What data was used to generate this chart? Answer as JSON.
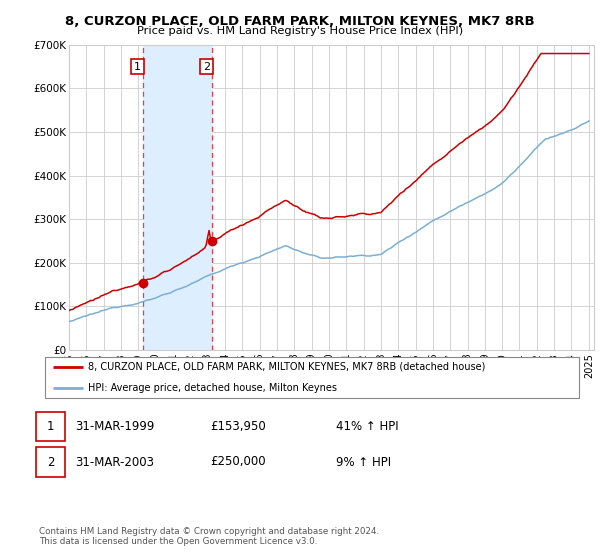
{
  "title_line1": "8, CURZON PLACE, OLD FARM PARK, MILTON KEYNES, MK7 8RB",
  "title_line2": "Price paid vs. HM Land Registry's House Price Index (HPI)",
  "ylim": [
    0,
    700000
  ],
  "yticks": [
    0,
    100000,
    200000,
    300000,
    400000,
    500000,
    600000,
    700000
  ],
  "ytick_labels": [
    "£0",
    "£100K",
    "£200K",
    "£300K",
    "£400K",
    "£500K",
    "£600K",
    "£700K"
  ],
  "hpi_color": "#7bafd4",
  "price_color": "#cc0000",
  "purchase1_date_x": 1999.25,
  "purchase1_price": 153950,
  "purchase2_date_x": 2003.25,
  "purchase2_price": 250000,
  "legend_line1": "8, CURZON PLACE, OLD FARM PARK, MILTON KEYNES, MK7 8RB (detached house)",
  "legend_line2": "HPI: Average price, detached house, Milton Keynes",
  "table_row1": [
    "1",
    "31-MAR-1999",
    "£153,950",
    "41% ↑ HPI"
  ],
  "table_row2": [
    "2",
    "31-MAR-2003",
    "£250,000",
    "9% ↑ HPI"
  ],
  "footnote": "Contains HM Land Registry data © Crown copyright and database right 2024.\nThis data is licensed under the Open Government Licence v3.0.",
  "shade_color": "#ddeeff",
  "vline_color": "#dd4444",
  "grid_color": "#cccccc",
  "background_color": "#ffffff",
  "xmin": 1995,
  "xmax": 2025.3
}
